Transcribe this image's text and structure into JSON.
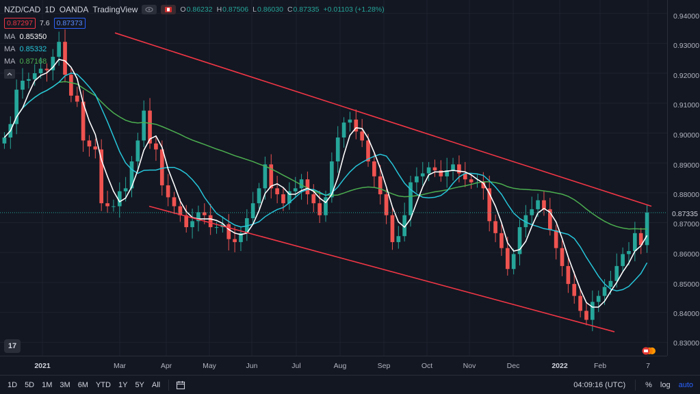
{
  "header": {
    "symbol": "NZD/CAD",
    "interval": "1D",
    "exchange": "OANDA",
    "source": "TradingView",
    "ohlc": {
      "o_label": "O",
      "o": "0.86232",
      "h_label": "H",
      "h": "0.87506",
      "l_label": "L",
      "l": "0.86030",
      "c_label": "C",
      "c": "0.87335",
      "change": "+0.01103 (+1.28%)"
    },
    "bid": "0.87297",
    "spread": "7.6",
    "ask": "0.87373"
  },
  "indicators": [
    {
      "label": "MA",
      "value": "0.85350",
      "color": "#ffffff"
    },
    {
      "label": "MA",
      "value": "0.85332",
      "color": "#26c6da"
    },
    {
      "label": "MA",
      "value": "0.87168",
      "color": "#4caf50"
    }
  ],
  "price_axis": {
    "ticks": [
      "0.94000",
      "0.93000",
      "0.92000",
      "0.91000",
      "0.90000",
      "0.89000",
      "0.88000",
      "0.87000",
      "0.86000",
      "0.85000",
      "0.84000",
      "0.83000"
    ],
    "current": "0.87335"
  },
  "time_axis": {
    "ticks": [
      {
        "label": "2021",
        "year": true
      },
      {
        "label": "Mar",
        "year": false
      },
      {
        "label": "Apr",
        "year": false
      },
      {
        "label": "May",
        "year": false
      },
      {
        "label": "Jun",
        "year": false
      },
      {
        "label": "Jul",
        "year": false
      },
      {
        "label": "Aug",
        "year": false
      },
      {
        "label": "Sep",
        "year": false
      },
      {
        "label": "Oct",
        "year": false
      },
      {
        "label": "Nov",
        "year": false
      },
      {
        "label": "Dec",
        "year": false
      },
      {
        "label": "2022",
        "year": true
      },
      {
        "label": "Feb",
        "year": false
      },
      {
        "label": "7",
        "year": false
      }
    ]
  },
  "bottom_bar": {
    "ranges": [
      "1D",
      "5D",
      "1M",
      "3M",
      "6M",
      "YTD",
      "1Y",
      "5Y",
      "All"
    ],
    "clock": "04:09:16 (UTC)",
    "percent": "%",
    "log": "log",
    "auto": "auto"
  },
  "logo_text": "17",
  "colors": {
    "up": "#26a69a",
    "down": "#ef5350",
    "channel": "#f23645",
    "ma_fast": "#ffffff",
    "ma_mid": "#26c6da",
    "ma_slow": "#4caf50",
    "bid": "#f23645",
    "ask": "#2962ff"
  },
  "chart_data": {
    "type": "candlestick",
    "y_range": [
      0.8255,
      0.9445
    ],
    "closes": [
      0.8985,
      0.903,
      0.9145,
      0.9175,
      0.918,
      0.92,
      0.9215,
      0.921,
      0.9255,
      0.9305,
      0.9195,
      0.9125,
      0.9105,
      0.8975,
      0.8955,
      0.8945,
      0.8765,
      0.8755,
      0.8755,
      0.8805,
      0.8815,
      0.8905,
      0.8975,
      0.9075,
      0.8965,
      0.8945,
      0.8825,
      0.8785,
      0.8755,
      0.8725,
      0.8685,
      0.8705,
      0.8735,
      0.8725,
      0.8685,
      0.8685,
      0.8695,
      0.8645,
      0.8635,
      0.8665,
      0.8715,
      0.8765,
      0.8815,
      0.8895,
      0.8815,
      0.8795,
      0.8765,
      0.8805,
      0.8815,
      0.8845,
      0.8795,
      0.8765,
      0.8725,
      0.8785,
      0.8905,
      0.8985,
      0.9035,
      0.9045,
      0.9005,
      0.8975,
      0.8905,
      0.8855,
      0.8795,
      0.8725,
      0.8635,
      0.8655,
      0.8725,
      0.8835,
      0.8855,
      0.8865,
      0.8885,
      0.8875,
      0.8855,
      0.8875,
      0.8895,
      0.8865,
      0.8845,
      0.8835,
      0.8835,
      0.8815,
      0.8705,
      0.8665,
      0.8615,
      0.8545,
      0.8595,
      0.8685,
      0.8725,
      0.8745,
      0.8775,
      0.8745,
      0.8675,
      0.8615,
      0.8555,
      0.8495,
      0.8455,
      0.8405,
      0.8375,
      0.8435,
      0.8455,
      0.8485,
      0.8505,
      0.8555,
      0.8595,
      0.8605,
      0.8665,
      0.8625,
      0.8734
    ]
  }
}
